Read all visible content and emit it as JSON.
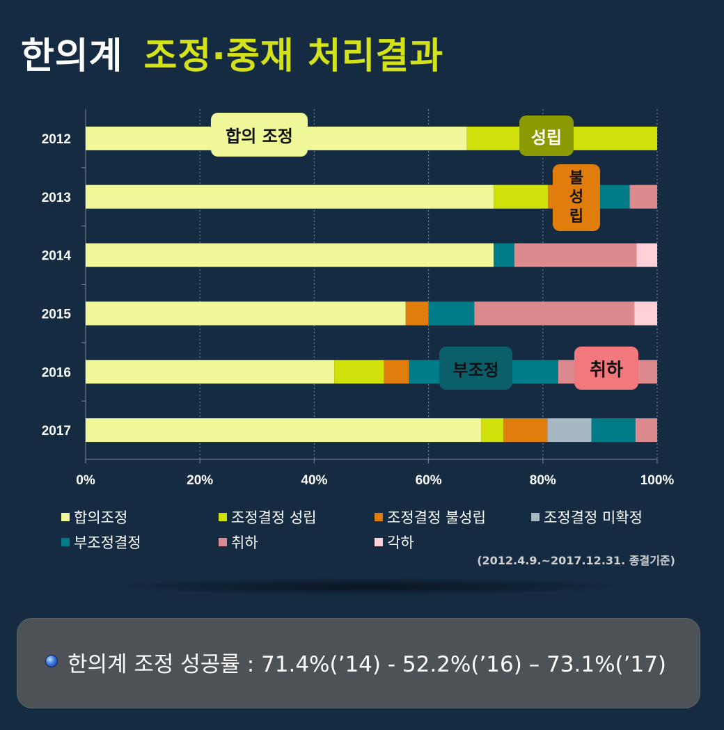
{
  "title": {
    "part1": "한의계",
    "part2": "조정·중재 처리결과"
  },
  "colors": {
    "background": "#142b42",
    "title_accent": "#d4e21c",
    "agreement": "#f1f89a",
    "decision_success": "#cfe00a",
    "decision_fail": "#e07d0c",
    "decision_unconfirmed": "#a7b8c2",
    "no_mediation": "#007c89",
    "withdrawal": "#dd8a8e",
    "dismissal": "#ffd0d6"
  },
  "chart_data": {
    "type": "bar",
    "orientation": "horizontal",
    "stacked": true,
    "normalized": true,
    "categories": [
      "2012",
      "2013",
      "2014",
      "2015",
      "2016",
      "2017"
    ],
    "series": [
      {
        "name": "합의조정",
        "color": "#f1f89a",
        "values": [
          66.7,
          71.4,
          71.4,
          56.0,
          43.5,
          69.2
        ]
      },
      {
        "name": "조정결정 성립",
        "color": "#cfe00a",
        "values": [
          33.3,
          9.5,
          0,
          0,
          8.7,
          3.9
        ]
      },
      {
        "name": "조정결정 불성립",
        "color": "#e07d0c",
        "values": [
          0,
          4.8,
          0,
          4.0,
          4.4,
          7.7
        ]
      },
      {
        "name": "조정결정 미확정",
        "color": "#a7b8c2",
        "values": [
          0,
          0,
          0,
          0,
          0,
          7.7
        ]
      },
      {
        "name": "부조정결정",
        "color": "#007c89",
        "values": [
          0,
          9.5,
          3.6,
          8.0,
          26.1,
          7.7
        ]
      },
      {
        "name": "취하",
        "color": "#dd8a8e",
        "values": [
          0,
          4.8,
          21.4,
          28.0,
          17.3,
          3.8
        ]
      },
      {
        "name": "각하",
        "color": "#ffd0d6",
        "values": [
          0,
          0,
          3.6,
          4.0,
          0,
          0
        ]
      }
    ],
    "xticks": [
      "0%",
      "20%",
      "40%",
      "60%",
      "80%",
      "100%"
    ],
    "xlim": [
      0,
      100
    ],
    "grid": true,
    "legend_position": "bottom",
    "annotations": [
      {
        "text": "합의 조정",
        "year": "2012",
        "bg": "#f1f89a",
        "fg": "#111111"
      },
      {
        "text": "성립",
        "year": "2012",
        "bg": "#8a9a00",
        "fg": "#ffffff"
      },
      {
        "text": "불\n성\n립",
        "year": "2013",
        "bg": "#e07d0c",
        "fg": "#111111"
      },
      {
        "text": "부조정",
        "year": "2016",
        "bg": "#0b5f6b",
        "fg": "#111111"
      },
      {
        "text": "취하",
        "year": "2016",
        "bg": "#f2787e",
        "fg": "#111111"
      }
    ]
  },
  "footnote": "(2012.4.9.~2017.12.31. 종결기준)",
  "summary": {
    "text": "한의계 조정 성공률 :  71.4%(’14) - 52.2%(’16) – 73.1%(’17)"
  }
}
